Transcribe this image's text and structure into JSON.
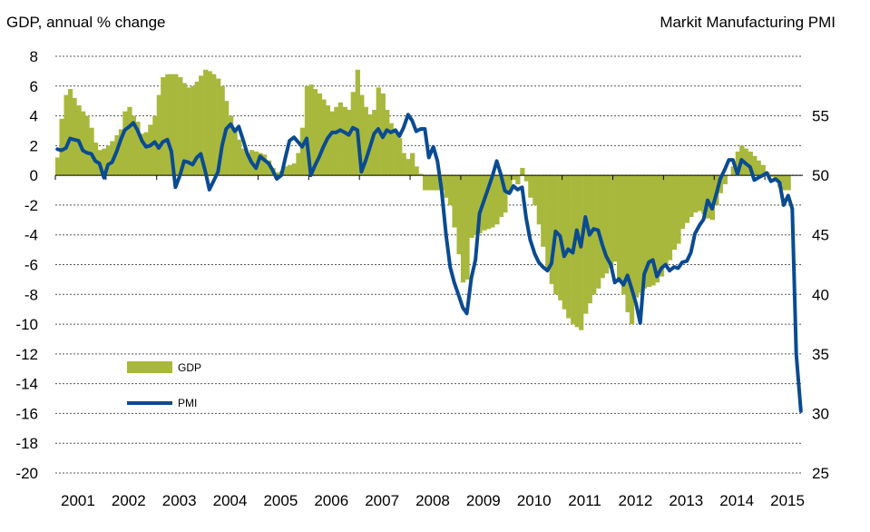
{
  "chart_data": {
    "type": "bar+line",
    "left_axis_title": "GDP, annual % change",
    "right_axis_title": "Markit Manufacturing PMI",
    "left_axis": {
      "min": -20,
      "max": 8,
      "ticks": [
        8,
        6,
        4,
        2,
        0,
        -2,
        -4,
        -6,
        -8,
        -10,
        -12,
        -14,
        -16,
        -18,
        -20
      ]
    },
    "right_axis": {
      "min": 25,
      "max": 60,
      "ticks": [
        55,
        50,
        45,
        40,
        35,
        30,
        25
      ]
    },
    "x_ticks": [
      "2001",
      "2002",
      "2003",
      "2004",
      "2005",
      "2006",
      "2007",
      "2008",
      "2009",
      "2010",
      "2011",
      "2012",
      "2013",
      "2014",
      "2015"
    ],
    "x_range": [
      2001.0,
      2015.75
    ],
    "grid": "horizontal dotted",
    "legend": [
      {
        "name": "GDP",
        "kind": "bar",
        "color": "#a8b83c"
      },
      {
        "name": "PMI",
        "kind": "line",
        "color": "#0a4b91"
      }
    ],
    "series": [
      {
        "name": "GDP",
        "kind": "bar",
        "color": "#a8b83c",
        "step": 0.0833,
        "x": [
          2001.0,
          2001.08,
          2001.17,
          2001.25,
          2001.33,
          2001.42,
          2001.5,
          2001.58,
          2001.67,
          2001.75,
          2001.83,
          2001.92,
          2002.0,
          2002.08,
          2002.17,
          2002.25,
          2002.33,
          2002.42,
          2002.5,
          2002.58,
          2002.67,
          2002.75,
          2002.83,
          2002.92,
          2003.0,
          2003.08,
          2003.17,
          2003.25,
          2003.33,
          2003.42,
          2003.5,
          2003.58,
          2003.67,
          2003.75,
          2003.83,
          2003.92,
          2004.0,
          2004.08,
          2004.17,
          2004.25,
          2004.33,
          2004.42,
          2004.5,
          2004.58,
          2004.67,
          2004.75,
          2004.83,
          2004.92,
          2005.0,
          2005.08,
          2005.17,
          2005.25,
          2005.33,
          2005.42,
          2005.5,
          2005.58,
          2005.67,
          2005.75,
          2005.83,
          2005.92,
          2006.0,
          2006.08,
          2006.17,
          2006.25,
          2006.33,
          2006.42,
          2006.5,
          2006.58,
          2006.67,
          2006.75,
          2006.83,
          2006.92,
          2007.0,
          2007.08,
          2007.17,
          2007.25,
          2007.33,
          2007.42,
          2007.5,
          2007.58,
          2007.67,
          2007.75,
          2007.83,
          2007.92,
          2008.0,
          2008.08,
          2008.17,
          2008.25,
          2008.33,
          2008.42,
          2008.5,
          2008.58,
          2008.67,
          2008.75,
          2008.83,
          2008.92,
          2009.0,
          2009.08,
          2009.17,
          2009.25,
          2009.33,
          2009.42,
          2009.5,
          2009.58,
          2009.67,
          2009.75,
          2009.83,
          2009.92,
          2010.0,
          2010.08,
          2010.17,
          2010.25,
          2010.33,
          2010.42,
          2010.5,
          2010.58,
          2010.67,
          2010.75,
          2010.83,
          2010.92,
          2011.0,
          2011.08,
          2011.17,
          2011.25,
          2011.33,
          2011.42,
          2011.5,
          2011.58,
          2011.67,
          2011.75,
          2011.83,
          2011.92,
          2012.0,
          2012.08,
          2012.17,
          2012.25,
          2012.33,
          2012.42,
          2012.5,
          2012.58,
          2012.67,
          2012.75,
          2012.83,
          2012.92,
          2013.0,
          2013.08,
          2013.17,
          2013.25,
          2013.33,
          2013.42,
          2013.5,
          2013.58,
          2013.67,
          2013.75,
          2013.83,
          2013.92,
          2014.0,
          2014.08,
          2014.17,
          2014.25,
          2014.33,
          2014.42,
          2014.5,
          2014.58,
          2014.67,
          2014.75,
          2014.83,
          2014.92,
          2015.0,
          2015.08,
          2015.17,
          2015.25,
          2015.33,
          2015.42
        ],
        "values": [
          1.2,
          3.8,
          5.4,
          5.8,
          5.2,
          4.7,
          4.3,
          4.0,
          3.2,
          2.2,
          1.7,
          1.8,
          2.0,
          2.3,
          2.7,
          3.1,
          4.3,
          4.6,
          4.0,
          3.6,
          2.8,
          2.9,
          3.4,
          4.0,
          5.4,
          6.6,
          6.8,
          6.8,
          6.8,
          6.6,
          6.2,
          5.9,
          6.0,
          6.3,
          6.7,
          7.1,
          7.0,
          6.8,
          6.5,
          6.0,
          5.0,
          4.0,
          3.2,
          2.4,
          1.8,
          1.5,
          1.7,
          1.6,
          1.5,
          1.4,
          1.0,
          0.5,
          0.2,
          0.3,
          0.6,
          0.7,
          0.8,
          1.5,
          3.2,
          6.0,
          6.1,
          5.8,
          5.5,
          5.1,
          4.7,
          4.3,
          4.6,
          4.9,
          4.6,
          4.4,
          5.6,
          7.1,
          5.4,
          4.6,
          4.1,
          4.4,
          5.9,
          5.5,
          4.4,
          3.5,
          3.0,
          2.5,
          1.5,
          1.1,
          1.5,
          0.6,
          0.1,
          -1.0,
          -1.0,
          -1.0,
          -1.0,
          -1.0,
          -1.5,
          -2.0,
          -3.5,
          -5.3,
          -7.2,
          -7.0,
          -4.2,
          -4.0,
          -3.9,
          -3.7,
          -3.6,
          -3.5,
          -3.3,
          -2.8,
          -2.5,
          -1.2,
          -0.3,
          -0.6,
          0.5,
          -0.4,
          -1.5,
          -2.0,
          -3.3,
          -4.8,
          -6.3,
          -7.3,
          -8.0,
          -8.4,
          -9.0,
          -9.6,
          -10.0,
          -10.2,
          -10.4,
          -9.3,
          -8.6,
          -8.0,
          -7.6,
          -6.9,
          -6.6,
          -6.2,
          -5.8,
          -7.2,
          -8.0,
          -9.2,
          -10.0,
          -8.2,
          -7.9,
          -7.6,
          -7.5,
          -7.4,
          -7.2,
          -6.8,
          -6.2,
          -5.7,
          -5.0,
          -4.6,
          -3.6,
          -3.2,
          -2.8,
          -2.5,
          -2.4,
          -2.6,
          -2.9,
          -3.0,
          -2.0,
          -1.2,
          -0.6,
          0.0,
          0.6,
          1.6,
          2.0,
          1.8,
          1.6,
          1.3,
          1.0,
          0.7,
          0.2,
          -0.1,
          -0.4,
          -0.8,
          -1.0,
          -1.0
        ]
      },
      {
        "name": "PMI",
        "kind": "line",
        "color": "#0a4b91",
        "x": [
          2001.0,
          2001.08,
          2001.17,
          2001.25,
          2001.33,
          2001.42,
          2001.5,
          2001.58,
          2001.67,
          2001.75,
          2001.83,
          2001.92,
          2002.0,
          2002.08,
          2002.17,
          2002.25,
          2002.33,
          2002.42,
          2002.5,
          2002.58,
          2002.67,
          2002.75,
          2002.83,
          2002.92,
          2003.0,
          2003.08,
          2003.17,
          2003.25,
          2003.33,
          2003.42,
          2003.5,
          2003.58,
          2003.67,
          2003.75,
          2003.83,
          2003.92,
          2004.0,
          2004.08,
          2004.17,
          2004.25,
          2004.33,
          2004.42,
          2004.5,
          2004.58,
          2004.67,
          2004.75,
          2004.83,
          2004.92,
          2005.0,
          2005.08,
          2005.17,
          2005.25,
          2005.33,
          2005.42,
          2005.5,
          2005.58,
          2005.67,
          2005.75,
          2005.83,
          2005.92,
          2006.0,
          2006.08,
          2006.17,
          2006.25,
          2006.33,
          2006.42,
          2006.5,
          2006.58,
          2006.67,
          2006.75,
          2006.83,
          2006.92,
          2007.0,
          2007.08,
          2007.17,
          2007.25,
          2007.33,
          2007.42,
          2007.5,
          2007.58,
          2007.67,
          2007.75,
          2007.83,
          2007.92,
          2008.0,
          2008.08,
          2008.17,
          2008.25,
          2008.33,
          2008.42,
          2008.5,
          2008.58,
          2008.67,
          2008.75,
          2008.83,
          2008.92,
          2009.0,
          2009.08,
          2009.17,
          2009.25,
          2009.33,
          2009.42,
          2009.5,
          2009.58,
          2009.67,
          2009.75,
          2009.83,
          2009.92,
          2010.0,
          2010.08,
          2010.17,
          2010.25,
          2010.33,
          2010.42,
          2010.5,
          2010.58,
          2010.67,
          2010.75,
          2010.83,
          2010.92,
          2011.0,
          2011.08,
          2011.17,
          2011.25,
          2011.33,
          2011.42,
          2011.5,
          2011.58,
          2011.67,
          2011.75,
          2011.83,
          2011.92,
          2012.0,
          2012.08,
          2012.17,
          2012.25,
          2012.33,
          2012.42,
          2012.5,
          2012.58,
          2012.67,
          2012.75,
          2012.83,
          2012.92,
          2013.0,
          2013.08,
          2013.17,
          2013.25,
          2013.33,
          2013.42,
          2013.5,
          2013.58,
          2013.67,
          2013.75,
          2013.83,
          2013.92,
          2014.0,
          2014.08,
          2014.17,
          2014.25,
          2014.33,
          2014.42,
          2014.5,
          2014.58,
          2014.67,
          2014.75,
          2014.83,
          2014.92,
          2015.0,
          2015.08,
          2015.17,
          2015.25,
          2015.33,
          2015.42,
          2015.5,
          2015.58,
          2015.67
        ],
        "values": [
          52.2,
          52.1,
          52.3,
          53.1,
          53.0,
          52.9,
          52.1,
          51.9,
          51.8,
          51.2,
          51.0,
          49.8,
          50.9,
          51.1,
          52.0,
          53.0,
          53.8,
          54.1,
          54.4,
          53.8,
          52.9,
          52.4,
          52.5,
          52.8,
          52.3,
          52.8,
          53.0,
          52.0,
          49.0,
          50.0,
          51.2,
          51.1,
          50.9,
          51.5,
          51.8,
          50.3,
          48.8,
          49.5,
          50.3,
          52.5,
          53.9,
          54.3,
          53.7,
          54.1,
          52.9,
          51.8,
          51.1,
          50.6,
          51.6,
          51.3,
          51.0,
          50.4,
          49.7,
          50.0,
          51.5,
          52.9,
          53.2,
          52.8,
          52.4,
          53.1,
          50.0,
          50.8,
          51.6,
          52.4,
          53.1,
          53.6,
          53.6,
          53.8,
          53.6,
          53.4,
          54.0,
          53.8,
          50.3,
          51.2,
          52.4,
          53.5,
          53.9,
          53.2,
          53.8,
          53.6,
          53.8,
          53.3,
          54.0,
          55.1,
          54.6,
          53.7,
          53.9,
          53.9,
          51.5,
          52.4,
          51.2,
          48.8,
          45.0,
          42.3,
          41.0,
          39.9,
          38.9,
          38.4,
          41.4,
          42.9,
          46.8,
          47.9,
          48.9,
          49.9,
          51.2,
          50.1,
          48.7,
          48.5,
          49.1,
          48.8,
          49.0,
          46.4,
          44.6,
          43.4,
          42.7,
          42.3,
          42.0,
          42.6,
          45.3,
          44.9,
          43.2,
          43.8,
          43.5,
          45.4,
          44.0,
          46.5,
          45.0,
          45.5,
          45.4,
          44.2,
          43.2,
          42.5,
          41.0,
          41.3,
          40.8,
          41.6,
          40.5,
          39.2,
          37.6,
          41.7,
          42.7,
          42.9,
          41.5,
          42.2,
          42.5,
          42.0,
          42.3,
          42.2,
          42.7,
          42.8,
          43.5,
          45.1,
          45.8,
          46.3,
          47.9,
          47.2,
          48.4,
          49.7,
          50.5,
          51.3,
          51.3,
          50.1,
          51.3,
          51.0,
          50.7,
          49.6,
          49.8,
          50.0,
          50.2,
          49.5,
          49.7,
          49.4,
          47.5,
          48.3,
          47.2,
          35.0,
          30.2
        ]
      }
    ]
  }
}
